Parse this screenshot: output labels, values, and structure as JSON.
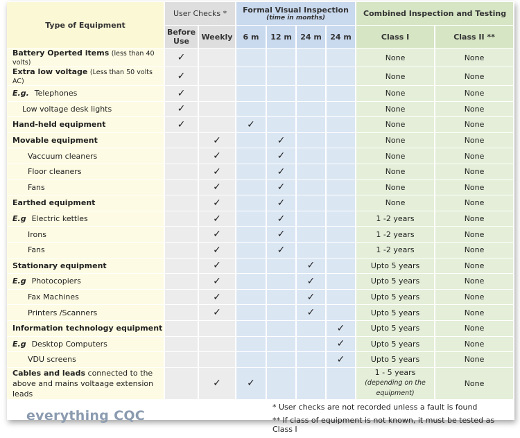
{
  "header": {
    "type_of_equipment": "Type of Equipment",
    "user_checks": "User Checks *",
    "formal_visual": "Formal Visual Inspection",
    "formal_visual_sub": "(time in months)",
    "combined": "Combined Inspection and Testing",
    "columns": [
      "Before Use",
      "Weekly",
      "6 m",
      "12 m",
      "24 m",
      "24 m",
      "Class I",
      "Class II **"
    ]
  },
  "rows": [
    {
      "label": "Battery Operted items",
      "note": "(less than 40 volts)",
      "checks": [
        true,
        false,
        false,
        false,
        false,
        false
      ],
      "class1": "None",
      "class2": "None"
    },
    {
      "label": "Extra low voltage",
      "note": "(Less than 50 volts AC)",
      "checks": [
        true,
        false,
        false,
        false,
        false,
        false
      ],
      "class1": "None",
      "class2": "None"
    },
    {
      "prefix": "E.g.",
      "label": "Telephones",
      "checks": [
        true,
        false,
        false,
        false,
        false,
        false
      ],
      "class1": "None",
      "class2": "None"
    },
    {
      "label": "Low voltage desk lights",
      "checks": [
        true,
        false,
        false,
        false,
        false,
        false
      ],
      "class1": "None",
      "class2": "None"
    },
    {
      "label": "Hand-held equipment",
      "checks": [
        true,
        false,
        true,
        false,
        false,
        false
      ],
      "class1": "None",
      "class2": "None"
    },
    {
      "label": "Movable equipment",
      "checks": [
        false,
        true,
        false,
        true,
        false,
        false
      ],
      "class1": "None",
      "class2": "None"
    },
    {
      "label": "Vaccuum cleaners",
      "checks": [
        false,
        true,
        false,
        true,
        false,
        false
      ],
      "class1": "None",
      "class2": "None"
    },
    {
      "label": "Floor cleaners",
      "checks": [
        false,
        true,
        false,
        true,
        false,
        false
      ],
      "class1": "None",
      "class2": "None"
    },
    {
      "label": "Fans",
      "checks": [
        false,
        true,
        false,
        true,
        false,
        false
      ],
      "class1": "None",
      "class2": "None"
    },
    {
      "label": "Earthed equipment",
      "checks": [
        false,
        true,
        false,
        true,
        false,
        false
      ],
      "class1": "None",
      "class2": "None"
    },
    {
      "prefix": "E.g",
      "label": "Electric kettles",
      "checks": [
        false,
        true,
        false,
        true,
        false,
        false
      ],
      "class1": "1 -2 years",
      "class2": "None"
    },
    {
      "label": "Irons",
      "checks": [
        false,
        true,
        false,
        true,
        false,
        false
      ],
      "class1": "1 -2 years",
      "class2": "None"
    },
    {
      "label": "Fans",
      "checks": [
        false,
        true,
        false,
        true,
        false,
        false
      ],
      "class1": "1 -2 years",
      "class2": "None"
    },
    {
      "label": "Stationary equipment",
      "checks": [
        false,
        true,
        false,
        false,
        true,
        false
      ],
      "class1": "Upto 5 years",
      "class2": "None"
    },
    {
      "prefix": "E.g",
      "label": "Photocopiers",
      "checks": [
        false,
        true,
        false,
        false,
        true,
        false
      ],
      "class1": "Upto 5 years",
      "class2": "None"
    },
    {
      "label": "Fax Machines",
      "checks": [
        false,
        true,
        false,
        false,
        true,
        false
      ],
      "class1": "Upto 5 years",
      "class2": "None"
    },
    {
      "label": "Printers /Scanners",
      "checks": [
        false,
        true,
        false,
        false,
        true,
        false
      ],
      "class1": "Upto 5 years",
      "class2": "None"
    },
    {
      "label": "Information technology equipment",
      "checks": [
        false,
        false,
        false,
        false,
        false,
        true
      ],
      "class1": "Upto 5 years",
      "class2": "None"
    },
    {
      "prefix": "E.g",
      "label": "Desktop Computers",
      "checks": [
        false,
        false,
        false,
        false,
        false,
        true
      ],
      "class1": "Upto 5 years",
      "class2": "None"
    },
    {
      "label": "VDU screens",
      "checks": [
        false,
        false,
        false,
        false,
        false,
        true
      ],
      "class1": "Upto 5 years",
      "class2": "None"
    },
    {
      "label": "Cables and leads",
      "note": "connected to the above and mains voltaage extension leads",
      "checks": [
        false,
        true,
        true,
        false,
        false,
        false
      ],
      "class1": "1 - 5 years",
      "class1_note": "(depending on the equipment)",
      "class2": "None"
    }
  ],
  "footnotes": [
    "* User checks are not recorded unless a fault is found",
    "** If class of equipment is not known, it must be tested as Class I"
  ],
  "logo": "everything CQC"
}
